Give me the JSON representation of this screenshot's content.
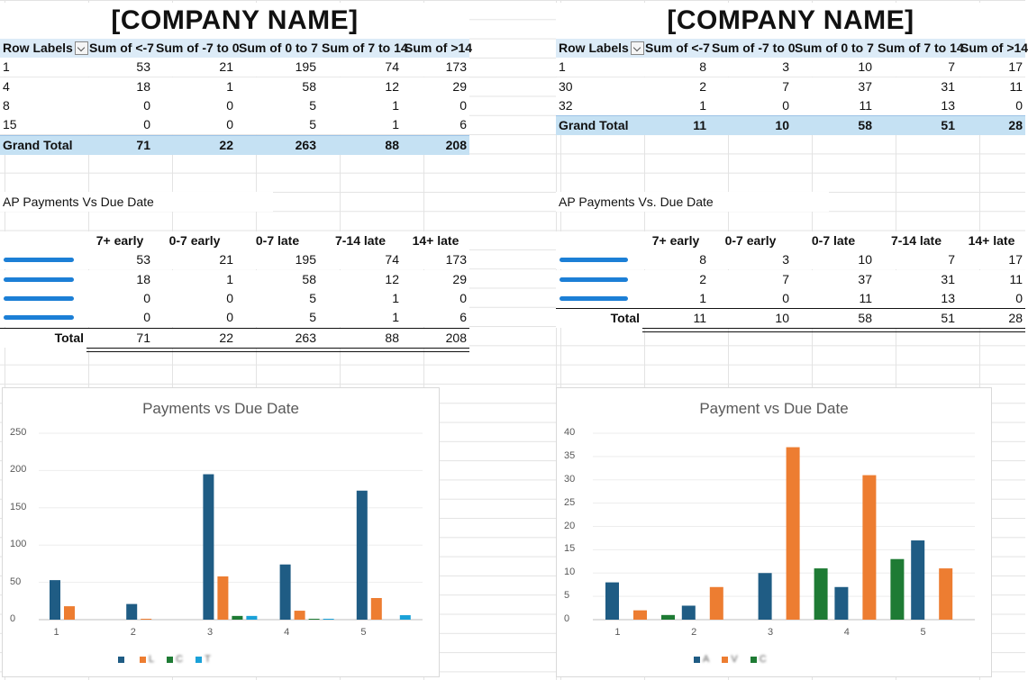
{
  "colors": {
    "series1": "#1f5c84",
    "series2": "#ed7d31",
    "series3": "#1e7b34",
    "series4": "#1aa1d8",
    "pivot_header": "#dcebf7",
    "pivot_total": "#c5e1f3"
  },
  "left": {
    "company": "[COMPANY NAME]",
    "pivot": {
      "headers": [
        "Row Labels",
        "Sum of <-7",
        "Sum of -7 to 0",
        "Sum of 0 to 7",
        "Sum of 7 to 14",
        "Sum of >14"
      ],
      "rows": [
        [
          "1",
          "53",
          "21",
          "195",
          "74",
          "173"
        ],
        [
          "4",
          "18",
          "1",
          "58",
          "12",
          "29"
        ],
        [
          "8",
          "0",
          "0",
          "5",
          "1",
          "0"
        ],
        [
          "15",
          "0",
          "0",
          "5",
          "1",
          "6"
        ]
      ],
      "total": [
        "Grand Total",
        "71",
        "22",
        "263",
        "88",
        "208"
      ]
    },
    "summary": {
      "title": "AP Payments Vs Due Date",
      "headers": [
        "",
        "7+ early",
        "0-7 early",
        "0-7 late",
        "7-14 late",
        "14+ late"
      ],
      "rows": [
        [
          "",
          "53",
          "21",
          "195",
          "74",
          "173"
        ],
        [
          "",
          "18",
          "1",
          "58",
          "12",
          "29"
        ],
        [
          "",
          "0",
          "0",
          "5",
          "1",
          "0"
        ],
        [
          "",
          "0",
          "0",
          "5",
          "1",
          "6"
        ]
      ],
      "total": [
        "Total",
        "71",
        "22",
        "263",
        "88",
        "208"
      ]
    },
    "chart_data": {
      "type": "bar",
      "title": "Payments vs Due Date",
      "categories": [
        "1",
        "2",
        "3",
        "4",
        "5"
      ],
      "ylim": [
        0,
        250
      ],
      "yticks": [
        "0",
        "50",
        "100",
        "150",
        "200",
        "250"
      ],
      "series": [
        {
          "values": [
            53,
            21,
            195,
            74,
            173
          ]
        },
        {
          "values": [
            18,
            1,
            58,
            12,
            29
          ]
        },
        {
          "values": [
            0,
            0,
            5,
            1,
            0
          ]
        },
        {
          "values": [
            0,
            0,
            5,
            1,
            6
          ]
        }
      ],
      "legend": [
        "",
        "L",
        "C",
        "T"
      ]
    }
  },
  "right": {
    "company": "[COMPANY NAME]",
    "pivot": {
      "headers": [
        "Row Labels",
        "Sum of <-7",
        "Sum of -7 to 0",
        "Sum of 0 to 7",
        "Sum of 7 to 14",
        "Sum of >14"
      ],
      "rows": [
        [
          "1",
          "8",
          "3",
          "10",
          "7",
          "17"
        ],
        [
          "30",
          "2",
          "7",
          "37",
          "31",
          "11"
        ],
        [
          "32",
          "1",
          "0",
          "11",
          "13",
          "0"
        ]
      ],
      "total": [
        "Grand Total",
        "11",
        "10",
        "58",
        "51",
        "28"
      ]
    },
    "summary": {
      "title": "AP Payments Vs. Due Date",
      "headers": [
        "",
        "7+ early",
        "0-7 early",
        "0-7 late",
        "7-14 late",
        "14+ late"
      ],
      "rows": [
        [
          "",
          "8",
          "3",
          "10",
          "7",
          "17"
        ],
        [
          "",
          "2",
          "7",
          "37",
          "31",
          "11"
        ],
        [
          "",
          "1",
          "0",
          "11",
          "13",
          "0"
        ]
      ],
      "total": [
        "Total",
        "11",
        "10",
        "58",
        "51",
        "28"
      ]
    },
    "chart_data": {
      "type": "bar",
      "title": "Payment vs Due Date",
      "categories": [
        "1",
        "2",
        "3",
        "4",
        "5"
      ],
      "ylim": [
        0,
        40
      ],
      "yticks": [
        "0",
        "5",
        "10",
        "15",
        "20",
        "25",
        "30",
        "35",
        "40"
      ],
      "series": [
        {
          "values": [
            8,
            3,
            10,
            7,
            17
          ]
        },
        {
          "values": [
            2,
            7,
            37,
            31,
            11
          ]
        },
        {
          "values": [
            1,
            0,
            11,
            13,
            0
          ]
        }
      ],
      "legend": [
        "A",
        "V",
        "C"
      ]
    }
  }
}
